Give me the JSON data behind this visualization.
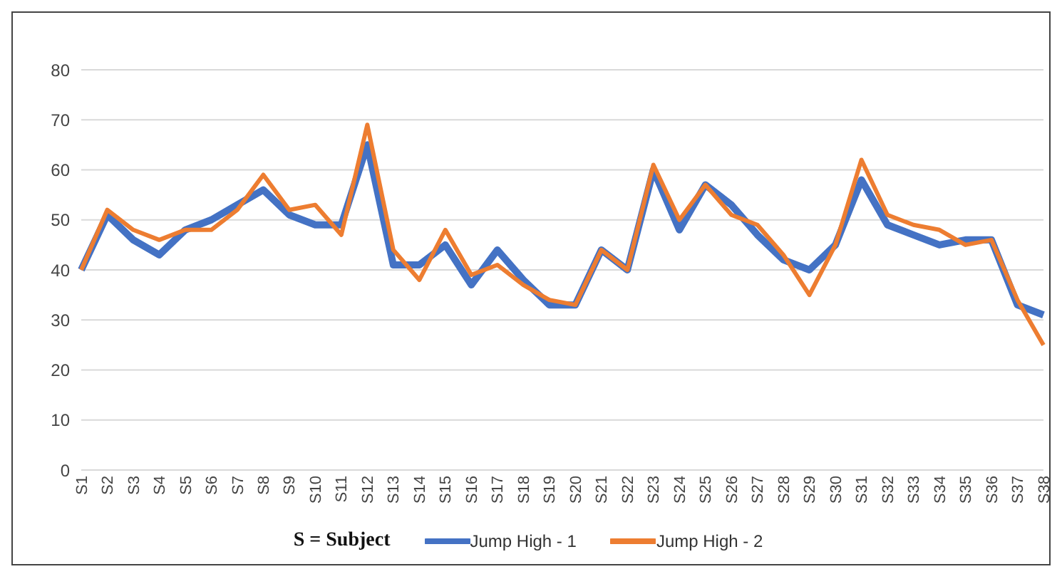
{
  "chart_data": {
    "type": "line",
    "categories": [
      "S1",
      "S2",
      "S3",
      "S4",
      "S5",
      "S6",
      "S7",
      "S8",
      "S9",
      "S10",
      "S11",
      "S12",
      "S13",
      "S14",
      "S15",
      "S16",
      "S17",
      "S18",
      "S19",
      "S20",
      "S21",
      "S22",
      "S23",
      "S24",
      "S25",
      "S26",
      "S27",
      "S28",
      "S29",
      "S30",
      "S31",
      "S32",
      "S33",
      "S34",
      "S35",
      "S36",
      "S37",
      "S38"
    ],
    "series": [
      {
        "name": "Jump High - 1",
        "color": "#4472c4",
        "values": [
          40,
          51,
          46,
          43,
          48,
          50,
          53,
          56,
          51,
          49,
          49,
          65,
          41,
          41,
          45,
          37,
          44,
          38,
          33,
          33,
          44,
          40,
          60,
          48,
          57,
          53,
          47,
          42,
          40,
          45,
          58,
          49,
          47,
          45,
          46,
          46,
          33,
          31
        ]
      },
      {
        "name": "Jump High - 2",
        "color": "#ed7d31",
        "values": [
          40,
          52,
          48,
          46,
          48,
          48,
          52,
          59,
          52,
          53,
          47,
          69,
          44,
          38,
          48,
          39,
          41,
          37,
          34,
          33,
          44,
          40,
          61,
          50,
          57,
          51,
          49,
          43,
          35,
          45,
          62,
          51,
          49,
          48,
          45,
          46,
          34,
          25
        ]
      }
    ],
    "ylim": [
      0,
      80
    ],
    "yticks": [
      0,
      10,
      20,
      30,
      40,
      50,
      60,
      70,
      80
    ],
    "grid": "y",
    "legend": "bottom",
    "marker": "none",
    "line_style": "solid",
    "annotations": [
      "S = Subject"
    ]
  }
}
